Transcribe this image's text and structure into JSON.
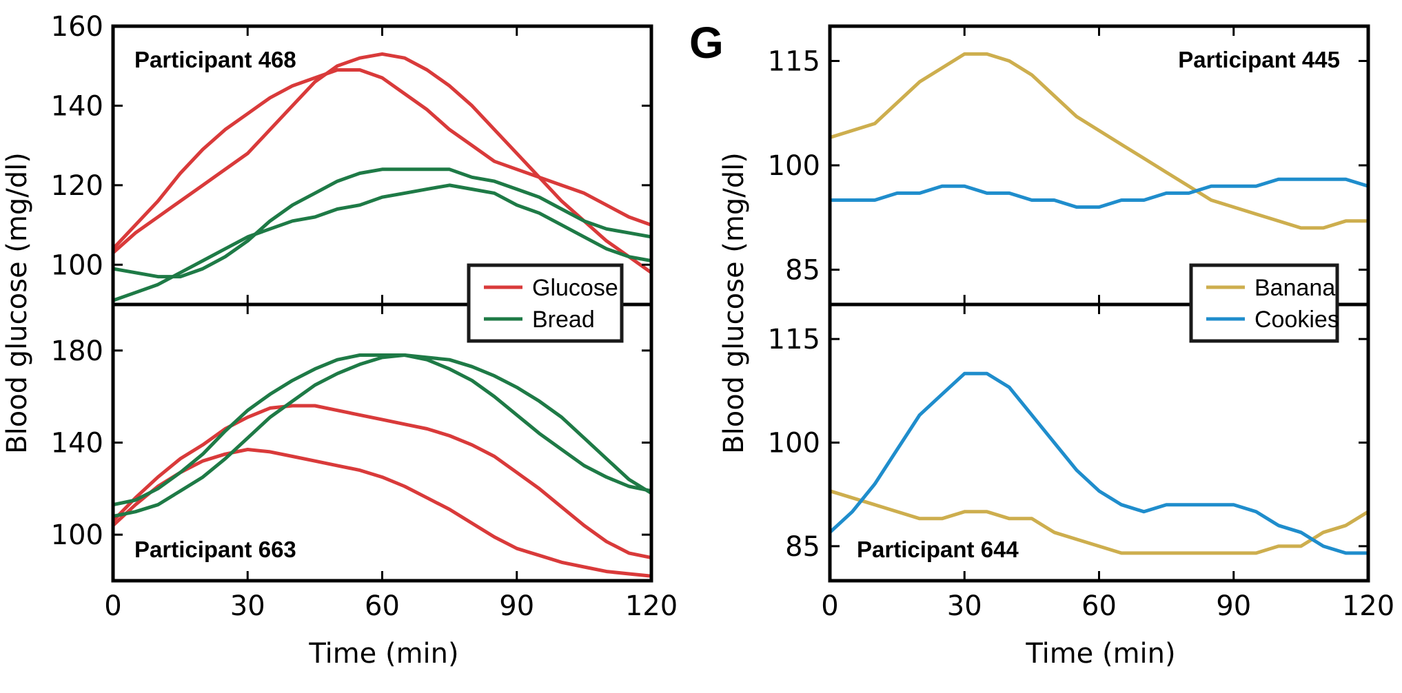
{
  "panel_letter": "G",
  "colors": {
    "glucose": "#d93a3a",
    "bread": "#1e7a46",
    "banana": "#cdae4e",
    "cookies": "#1f8dcc"
  },
  "chart_data": [
    {
      "type": "line",
      "title": "Participant 468",
      "xlabel": "",
      "ylabel": "Blood glucose (mg/dl)",
      "xlim": [
        0,
        120
      ],
      "ylim": [
        90,
        160
      ],
      "xticks": [
        0,
        30,
        60,
        90,
        120
      ],
      "yticks": [
        100,
        120,
        140,
        160
      ],
      "legend": {
        "position": "bottom-right",
        "entries": [
          "Glucose",
          "Bread"
        ]
      },
      "series": [
        {
          "name": "Glucose",
          "color": "#d93a3a",
          "x": [
            0,
            5,
            10,
            15,
            20,
            25,
            30,
            35,
            40,
            45,
            50,
            55,
            60,
            65,
            70,
            75,
            80,
            85,
            90,
            95,
            100,
            105,
            110,
            115,
            120
          ],
          "y": [
            104,
            110,
            116,
            123,
            129,
            134,
            138,
            142,
            145,
            147,
            149,
            149,
            147,
            143,
            139,
            134,
            130,
            126,
            124,
            122,
            120,
            118,
            115,
            112,
            110
          ]
        },
        {
          "name": "Glucose",
          "color": "#d93a3a",
          "x": [
            0,
            5,
            10,
            15,
            20,
            25,
            30,
            35,
            40,
            45,
            50,
            55,
            60,
            65,
            70,
            75,
            80,
            85,
            90,
            95,
            100,
            105,
            110,
            115,
            120
          ],
          "y": [
            103,
            108,
            112,
            116,
            120,
            124,
            128,
            134,
            140,
            146,
            150,
            152,
            153,
            152,
            149,
            145,
            140,
            134,
            128,
            122,
            116,
            111,
            106,
            102,
            98
          ]
        },
        {
          "name": "Bread",
          "color": "#1e7a46",
          "x": [
            0,
            5,
            10,
            15,
            20,
            25,
            30,
            35,
            40,
            45,
            50,
            55,
            60,
            65,
            70,
            75,
            80,
            85,
            90,
            95,
            100,
            105,
            110,
            115,
            120
          ],
          "y": [
            99,
            98,
            97,
            97,
            99,
            102,
            106,
            111,
            115,
            118,
            121,
            123,
            124,
            124,
            124,
            124,
            122,
            121,
            119,
            117,
            114,
            111,
            109,
            108,
            107
          ]
        },
        {
          "name": "Bread",
          "color": "#1e7a46",
          "x": [
            0,
            5,
            10,
            15,
            20,
            25,
            30,
            35,
            40,
            45,
            50,
            55,
            60,
            65,
            70,
            75,
            80,
            85,
            90,
            95,
            100,
            105,
            110,
            115,
            120
          ],
          "y": [
            91,
            93,
            95,
            98,
            101,
            104,
            107,
            109,
            111,
            112,
            114,
            115,
            117,
            118,
            119,
            120,
            119,
            118,
            115,
            113,
            110,
            107,
            104,
            102,
            101
          ]
        }
      ]
    },
    {
      "type": "line",
      "title": "Participant 663",
      "xlabel": "Time (min)",
      "ylabel": "Blood glucose (mg/dl)",
      "xlim": [
        0,
        120
      ],
      "ylim": [
        80,
        200
      ],
      "xticks": [
        0,
        30,
        60,
        90,
        120
      ],
      "xticklabels": [
        "0",
        "30",
        "60",
        "90",
        "120"
      ],
      "yticks": [
        100,
        140,
        180
      ],
      "series": [
        {
          "name": "Glucose",
          "color": "#d93a3a",
          "x": [
            0,
            5,
            10,
            15,
            20,
            25,
            30,
            35,
            40,
            45,
            50,
            55,
            60,
            65,
            70,
            75,
            80,
            85,
            90,
            95,
            100,
            105,
            110,
            115,
            120
          ],
          "y": [
            106,
            116,
            125,
            133,
            139,
            146,
            151,
            155,
            156,
            156,
            154,
            152,
            150,
            148,
            146,
            143,
            139,
            134,
            127,
            120,
            112,
            104,
            97,
            92,
            90
          ]
        },
        {
          "name": "Glucose",
          "color": "#d93a3a",
          "x": [
            0,
            5,
            10,
            15,
            20,
            25,
            30,
            35,
            40,
            45,
            50,
            55,
            60,
            65,
            70,
            75,
            80,
            85,
            90,
            95,
            100,
            105,
            110,
            115,
            120
          ],
          "y": [
            104,
            113,
            121,
            127,
            132,
            135,
            137,
            136,
            134,
            132,
            130,
            128,
            125,
            121,
            116,
            111,
            105,
            99,
            94,
            91,
            88,
            86,
            84,
            83,
            82
          ]
        },
        {
          "name": "Bread",
          "color": "#1e7a46",
          "x": [
            0,
            5,
            10,
            15,
            20,
            25,
            30,
            35,
            40,
            45,
            50,
            55,
            60,
            65,
            70,
            75,
            80,
            85,
            90,
            95,
            100,
            105,
            110,
            115,
            120
          ],
          "y": [
            113,
            115,
            120,
            127,
            135,
            145,
            154,
            161,
            167,
            172,
            176,
            178,
            178,
            178,
            177,
            176,
            173,
            169,
            164,
            158,
            151,
            142,
            133,
            124,
            118
          ]
        },
        {
          "name": "Bread",
          "color": "#1e7a46",
          "x": [
            0,
            5,
            10,
            15,
            20,
            25,
            30,
            35,
            40,
            45,
            50,
            55,
            60,
            65,
            70,
            75,
            80,
            85,
            90,
            95,
            100,
            105,
            110,
            115,
            120
          ],
          "y": [
            108,
            110,
            113,
            119,
            125,
            133,
            142,
            151,
            158,
            165,
            170,
            174,
            177,
            178,
            176,
            172,
            167,
            160,
            152,
            144,
            137,
            130,
            125,
            121,
            119
          ]
        }
      ]
    },
    {
      "type": "line",
      "title": "Participant 445",
      "xlabel": "",
      "ylabel": "Blood glucose (mg/dl)",
      "xlim": [
        0,
        120
      ],
      "ylim": [
        80,
        120
      ],
      "xticks": [
        0,
        30,
        60,
        90,
        120
      ],
      "yticks": [
        85,
        100,
        115
      ],
      "legend": {
        "position": "bottom-right",
        "entries": [
          "Banana",
          "Cookies"
        ]
      },
      "series": [
        {
          "name": "Banana",
          "color": "#cdae4e",
          "x": [
            0,
            10,
            20,
            30,
            35,
            40,
            45,
            50,
            55,
            60,
            65,
            70,
            75,
            80,
            85,
            90,
            95,
            100,
            105,
            110,
            115,
            120
          ],
          "y": [
            104,
            106,
            112,
            116,
            116,
            115,
            113,
            110,
            107,
            105,
            103,
            101,
            99,
            97,
            95,
            94,
            93,
            92,
            91,
            91,
            92,
            92
          ]
        },
        {
          "name": "Cookies",
          "color": "#1f8dcc",
          "x": [
            0,
            5,
            10,
            15,
            20,
            25,
            30,
            35,
            40,
            45,
            50,
            55,
            60,
            65,
            70,
            75,
            80,
            85,
            90,
            95,
            100,
            105,
            110,
            115,
            120
          ],
          "y": [
            95,
            95,
            95,
            96,
            96,
            97,
            97,
            96,
            96,
            95,
            95,
            94,
            94,
            95,
            95,
            96,
            96,
            97,
            97,
            97,
            98,
            98,
            98,
            98,
            97
          ]
        }
      ]
    },
    {
      "type": "line",
      "title": "Participant 644",
      "xlabel": "Time (min)",
      "ylabel": "Blood glucose (mg/dl)",
      "xlim": [
        0,
        120
      ],
      "ylim": [
        80,
        120
      ],
      "xticks": [
        0,
        30,
        60,
        90,
        120
      ],
      "xticklabels": [
        "0",
        "30",
        "60",
        "90",
        "120"
      ],
      "yticks": [
        85,
        100,
        115
      ],
      "series": [
        {
          "name": "Banana",
          "color": "#cdae4e",
          "x": [
            0,
            5,
            10,
            15,
            20,
            25,
            30,
            35,
            40,
            45,
            50,
            55,
            60,
            65,
            70,
            75,
            80,
            85,
            90,
            95,
            100,
            105,
            110,
            115,
            120
          ],
          "y": [
            93,
            92,
            91,
            90,
            89,
            89,
            90,
            90,
            89,
            89,
            87,
            86,
            85,
            84,
            84,
            84,
            84,
            84,
            84,
            84,
            85,
            85,
            87,
            88,
            90
          ]
        },
        {
          "name": "Cookies",
          "color": "#1f8dcc",
          "x": [
            0,
            5,
            10,
            15,
            20,
            25,
            30,
            35,
            40,
            45,
            50,
            55,
            60,
            65,
            70,
            75,
            80,
            85,
            90,
            95,
            100,
            105,
            110,
            115,
            120
          ],
          "y": [
            87,
            90,
            94,
            99,
            104,
            107,
            110,
            110,
            108,
            104,
            100,
            96,
            93,
            91,
            90,
            91,
            91,
            91,
            91,
            90,
            88,
            87,
            85,
            84,
            84
          ]
        }
      ]
    }
  ]
}
